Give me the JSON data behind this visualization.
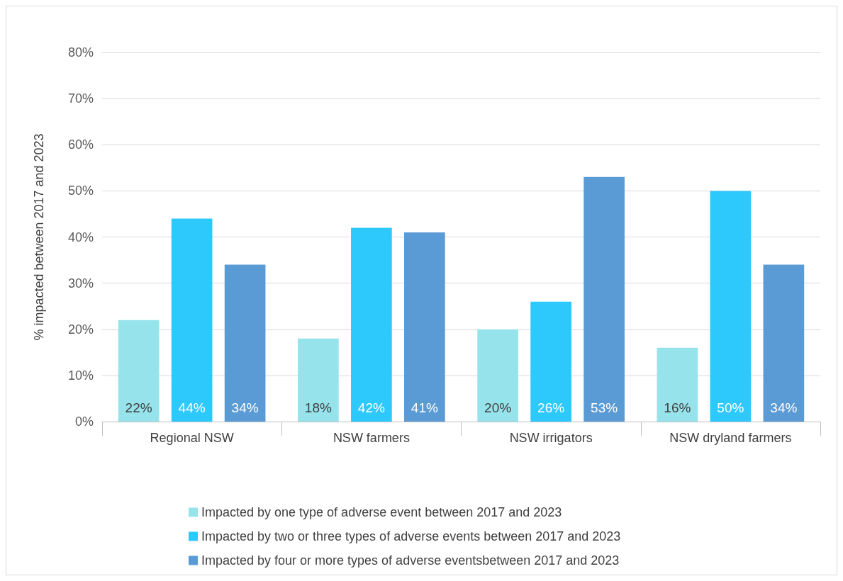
{
  "chart_data": {
    "type": "bar",
    "ylabel": "% impacted between 2017 and 2023",
    "categories": [
      "Regional NSW",
      "NSW farmers",
      "NSW irrigators",
      "NSW dryland farmers"
    ],
    "series": [
      {
        "name": "Impacted by one type of adverse event between 2017 and 2023",
        "color": "#97e3ec",
        "values": [
          22,
          18,
          20,
          16
        ],
        "value_labels": [
          "22%",
          "18%",
          "20%",
          "16%"
        ]
      },
      {
        "name": "Impacted by two or three types of adverse events between 2017 and 2023",
        "color": "#2ec9fc",
        "values": [
          44,
          42,
          26,
          50
        ],
        "value_labels": [
          "44%",
          "42%",
          "26%",
          "50%"
        ]
      },
      {
        "name": "Impacted by four or more types of adverse eventsbetween 2017 and 2023",
        "color": "#5b9bd5",
        "values": [
          34,
          41,
          53,
          34
        ],
        "value_labels": [
          "34%",
          "41%",
          "53%",
          "34%"
        ]
      }
    ],
    "ylim": [
      0,
      80
    ],
    "yticks": [
      {
        "value": 0,
        "label": "0%"
      },
      {
        "value": 10,
        "label": "10%"
      },
      {
        "value": 20,
        "label": "20%"
      },
      {
        "value": 30,
        "label": "30%"
      },
      {
        "value": 40,
        "label": "40%"
      },
      {
        "value": 50,
        "label": "50%"
      },
      {
        "value": 60,
        "label": "60%"
      },
      {
        "value": 70,
        "label": "70%"
      },
      {
        "value": 80,
        "label": "80%"
      }
    ],
    "grid": "y",
    "legend": "bottom"
  }
}
